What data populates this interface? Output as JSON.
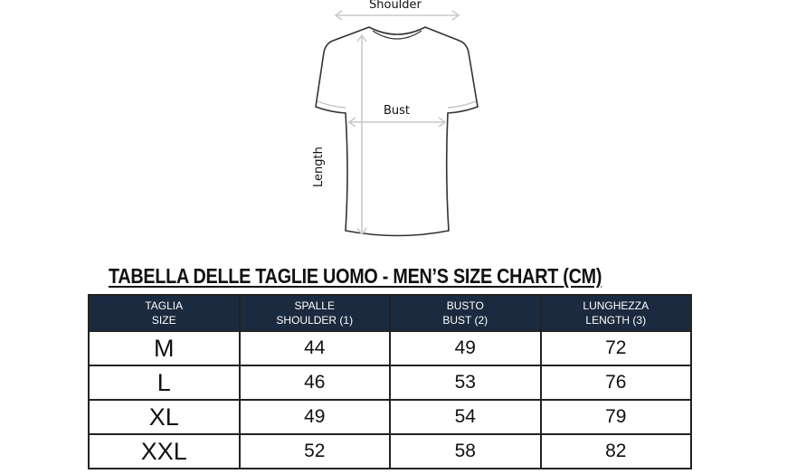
{
  "diagram": {
    "labels": {
      "shoulder": "Shoulder",
      "bust": "Bust",
      "length": "Length"
    }
  },
  "title": "TABELLA DELLE TAGLIE UOMO - MEN’S SIZE CHART (CM)",
  "colors": {
    "header_bg": "#1c2a40",
    "header_text": "#ffffff"
  },
  "table": {
    "headers": [
      {
        "it": "TAGLIA",
        "en": "SIZE"
      },
      {
        "it": "SPALLE",
        "en": "SHOULDER (1)"
      },
      {
        "it": "BUSTO",
        "en": "BUST (2)"
      },
      {
        "it": "LUNGHEZZA",
        "en": "LENGTH (3)"
      }
    ],
    "rows": [
      [
        "M",
        "44",
        "49",
        "72"
      ],
      [
        "L",
        "46",
        "53",
        "76"
      ],
      [
        "XL",
        "49",
        "54",
        "79"
      ],
      [
        "XXL",
        "52",
        "58",
        "82"
      ]
    ]
  }
}
